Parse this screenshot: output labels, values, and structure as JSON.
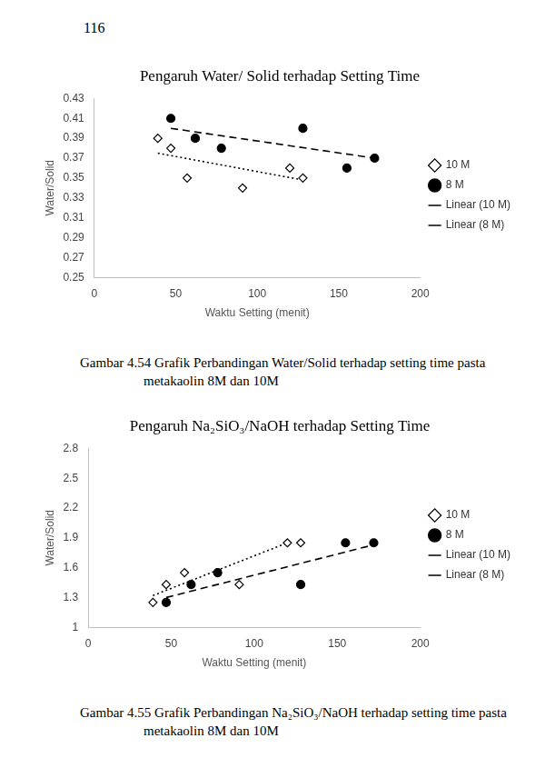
{
  "page": "116",
  "chart_data": [
    {
      "type": "scatter",
      "title": "Pengaruh Water/ Solid terhadap Setting Time",
      "x_label": "Waktu Setting (menit)",
      "y_label": "Water/Solid",
      "caption": "Gambar 4.54 Grafik Perbandingan Water/Solid terhadap setting time pasta metakaolin 8M dan 10M",
      "xlim": [
        0,
        200
      ],
      "xticks": [
        0,
        50,
        100,
        150,
        200
      ],
      "ylim": [
        0.25,
        0.43
      ],
      "yticks": [
        0.25,
        0.27,
        0.29,
        0.31,
        0.33,
        0.35,
        0.37,
        0.39,
        0.41,
        0.43
      ],
      "grid": false,
      "legend": "right",
      "series": [
        {
          "name": "10 M",
          "color": "#000000",
          "marker": "diamond",
          "x": [
            39,
            47,
            57,
            91,
            120,
            128
          ],
          "values": [
            0.39,
            0.38,
            0.35,
            0.34,
            0.36,
            0.35
          ]
        },
        {
          "name": "8 M",
          "color": "#000000",
          "marker": "circle",
          "x": [
            47,
            62,
            78,
            128,
            155,
            172
          ],
          "values": [
            0.41,
            0.39,
            0.38,
            0.4,
            0.36,
            0.37
          ]
        },
        {
          "name": "Linear (10 M)",
          "type": "line",
          "color": "#000000",
          "line_style": "dotted",
          "x": [
            39,
            128
          ],
          "values": [
            0.375,
            0.348
          ]
        },
        {
          "name": "Linear (8 M)",
          "type": "line",
          "color": "#000000",
          "line_style": "dashed",
          "x": [
            47,
            172
          ],
          "values": [
            0.4,
            0.37
          ]
        }
      ]
    },
    {
      "type": "scatter",
      "title": "Pengaruh Na₂SiO₃/NaOH terhadap Setting Time",
      "x_label": "Waktu Setting (menit)",
      "y_label": "Water/Solid",
      "caption": "Gambar 4.55 Grafik Perbandingan Na₂SiO₃/NaOH terhadap setting time pasta metakaolin 8M dan 10M",
      "xlim": [
        0,
        200
      ],
      "xticks": [
        0,
        50,
        100,
        150,
        200
      ],
      "ylim": [
        1,
        2.8
      ],
      "yticks": [
        1,
        1.3,
        1.6,
        1.9,
        2.2,
        2.5,
        2.8
      ],
      "grid": false,
      "legend": "right",
      "series": [
        {
          "name": "10 M",
          "color": "#000000",
          "marker": "diamond",
          "x": [
            39,
            47,
            58,
            91,
            120,
            128
          ],
          "values": [
            1.25,
            1.43,
            1.55,
            1.43,
            1.85,
            1.85
          ]
        },
        {
          "name": "8 M",
          "color": "#000000",
          "marker": "circle",
          "x": [
            47,
            62,
            78,
            128,
            155,
            172
          ],
          "values": [
            1.25,
            1.43,
            1.55,
            1.43,
            1.85,
            1.85
          ]
        },
        {
          "name": "Linear (10 M)",
          "type": "line",
          "color": "#000000",
          "line_style": "dotted",
          "x": [
            39,
            120
          ],
          "values": [
            1.32,
            1.85
          ]
        },
        {
          "name": "Linear (8 M)",
          "type": "line",
          "color": "#000000",
          "line_style": "dashed",
          "x": [
            47,
            172
          ],
          "values": [
            1.3,
            1.83
          ]
        }
      ]
    }
  ]
}
